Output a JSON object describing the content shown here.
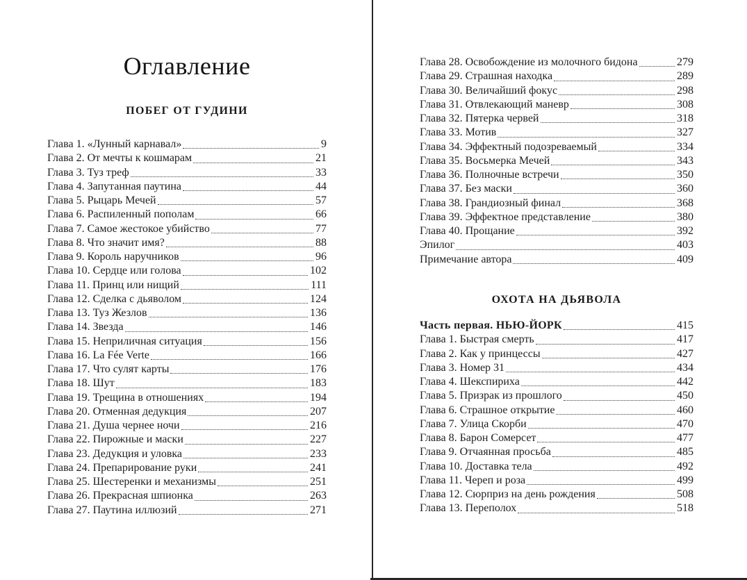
{
  "toc": {
    "title": "Оглавление",
    "section1_heading": "ПОБЕГ ОТ ГУДИНИ",
    "section2_heading": "ОХОТА НА ДЬЯВОЛА",
    "left_entries": [
      {
        "title": "Глава 1. «Лунный карнавал»",
        "page": "9"
      },
      {
        "title": "Глава 2. От мечты к кошмарам",
        "page": "21"
      },
      {
        "title": "Глава 3. Туз треф",
        "page": "33"
      },
      {
        "title": "Глава 4. Запутанная паутина",
        "page": "44"
      },
      {
        "title": "Глава 5. Рыцарь Мечей",
        "page": "57"
      },
      {
        "title": "Глава 6. Распиленный пополам",
        "page": "66"
      },
      {
        "title": "Глава 7. Самое жестокое убийство",
        "page": "77"
      },
      {
        "title": "Глава 8. Что значит имя?",
        "page": "88"
      },
      {
        "title": "Глава 9. Король наручников",
        "page": "96"
      },
      {
        "title": "Глава 10. Сердце или голова",
        "page": "102"
      },
      {
        "title": "Глава 11. Принц или нищий",
        "page": "111"
      },
      {
        "title": "Глава 12. Сделка с дьяволом",
        "page": "124"
      },
      {
        "title": "Глава 13. Туз Жезлов",
        "page": "136"
      },
      {
        "title": "Глава 14. Звезда",
        "page": "146"
      },
      {
        "title": "Глава 15. Неприличная ситуация",
        "page": "156"
      },
      {
        "title": "Глава 16. La Fée Verte",
        "page": "166"
      },
      {
        "title": "Глава 17. Что сулят карты",
        "page": "176"
      },
      {
        "title": "Глава 18. Шут",
        "page": "183"
      },
      {
        "title": "Глава 19. Трещина в отношениях",
        "page": "194"
      },
      {
        "title": "Глава 20. Отменная дедукция",
        "page": "207"
      },
      {
        "title": "Глава 21. Душа чернее ночи",
        "page": "216"
      },
      {
        "title": "Глава 22. Пирожные и маски",
        "page": "227"
      },
      {
        "title": "Глава 23. Дедукция и уловка",
        "page": "233"
      },
      {
        "title": "Глава 24. Препарирование руки",
        "page": "241"
      },
      {
        "title": "Глава 25. Шестеренки и механизмы",
        "page": "251"
      },
      {
        "title": "Глава 26. Прекрасная шпионка",
        "page": "263"
      },
      {
        "title": "Глава 27. Паутина иллюзий",
        "page": "271"
      }
    ],
    "right_entries_part1": [
      {
        "title": "Глава 28. Освобождение из молочного бидона",
        "page": "279"
      },
      {
        "title": "Глава 29. Страшная находка",
        "page": "289"
      },
      {
        "title": "Глава 30. Величайший фокус",
        "page": "298"
      },
      {
        "title": "Глава 31. Отвлекающий маневр",
        "page": "308"
      },
      {
        "title": "Глава 32. Пятерка червей",
        "page": "318"
      },
      {
        "title": "Глава 33. Мотив",
        "page": "327"
      },
      {
        "title": "Глава 34. Эффектный подозреваемый",
        "page": "334"
      },
      {
        "title": "Глава 35. Восьмерка Мечей",
        "page": "343"
      },
      {
        "title": "Глава 36. Полночные встречи",
        "page": "350"
      },
      {
        "title": "Глава 37. Без маски",
        "page": "360"
      },
      {
        "title": "Глава 38. Грандиозный финал",
        "page": "368"
      },
      {
        "title": "Глава 39. Эффектное представление",
        "page": "380"
      },
      {
        "title": "Глава 40. Прощание",
        "page": "392"
      },
      {
        "title": "Эпилог",
        "page": "403"
      },
      {
        "title": "Примечание автора",
        "page": "409"
      }
    ],
    "right_entries_part2": [
      {
        "title": "Часть первая. НЬЮ-ЙОРК",
        "page": "415",
        "bold": true
      },
      {
        "title": "Глава 1. Быстрая смерть",
        "page": "417"
      },
      {
        "title": "Глава 2. Как у принцессы",
        "page": "427"
      },
      {
        "title": "Глава 3. Номер 31",
        "page": "434"
      },
      {
        "title": "Глава 4. Шекспириха",
        "page": "442"
      },
      {
        "title": "Глава 5. Призрак из прошлого",
        "page": "450"
      },
      {
        "title": "Глава 6. Страшное открытие",
        "page": "460"
      },
      {
        "title": "Глава 7. Улица Скорби",
        "page": "470"
      },
      {
        "title": "Глава 8. Барон Сомерсет",
        "page": "477"
      },
      {
        "title": "Глава 9. Отчаянная просьба",
        "page": "485"
      },
      {
        "title": "Глава 10. Доставка тела",
        "page": "492"
      },
      {
        "title": "Глава 11. Череп и роза",
        "page": "499"
      },
      {
        "title": "Глава 12. Сюрприз на день рождения",
        "page": "508"
      },
      {
        "title": "Глава 13. Переполох",
        "page": "518"
      }
    ],
    "colors": {
      "text": "#1e1e1e",
      "divider": "#262626",
      "background": "#ffffff"
    }
  }
}
